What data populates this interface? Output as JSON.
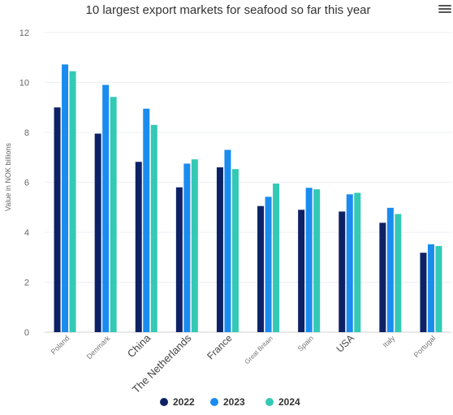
{
  "chart_data": {
    "type": "bar",
    "title": "10 largest export markets for seafood so far this year",
    "xlabel": "",
    "ylabel": "Value in NOK billions",
    "ylim": [
      0,
      12
    ],
    "yticks": [
      0,
      2,
      4,
      6,
      8,
      10,
      12
    ],
    "grid": true,
    "legend_position": "bottom-center",
    "categories": [
      "Poland",
      "Denmark",
      "China",
      "The Netherlands",
      "France",
      "Great Britain",
      "Spain",
      "USA",
      "Italy",
      "Portugal"
    ],
    "series": [
      {
        "name": "2022",
        "color": "#0d2266",
        "values": [
          9.0,
          7.95,
          6.82,
          5.8,
          6.6,
          5.05,
          4.9,
          4.83,
          4.38,
          3.18
        ]
      },
      {
        "name": "2023",
        "color": "#1a8cf0",
        "values": [
          10.72,
          9.9,
          8.95,
          6.75,
          7.3,
          5.42,
          5.78,
          5.52,
          4.98,
          3.52
        ]
      },
      {
        "name": "2024",
        "color": "#33c9b5",
        "values": [
          10.45,
          9.42,
          8.3,
          6.92,
          6.53,
          5.95,
          5.72,
          5.58,
          4.73,
          3.45
        ]
      }
    ]
  },
  "menu": {
    "icon": "hamburger-menu-icon"
  }
}
